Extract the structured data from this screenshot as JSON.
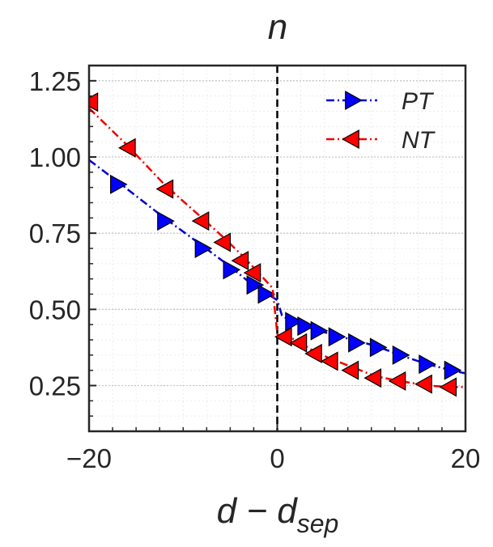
{
  "chart_data": {
    "type": "line",
    "title": "n",
    "xlabel_main": "d − d",
    "xlabel_sub": "sep",
    "ylabel": "",
    "xlim": [
      -20,
      20
    ],
    "ylim": [
      0.1,
      1.3
    ],
    "x_ticks": [
      -20,
      0,
      20
    ],
    "x_tick_labels": [
      "−20",
      "0",
      "20"
    ],
    "y_ticks": [
      0.25,
      0.5,
      0.75,
      1.0,
      1.25
    ],
    "y_tick_labels": [
      "0.25",
      "0.50",
      "0.75",
      "1.00",
      "1.25"
    ],
    "grid": true,
    "legend_position": "top-right",
    "reference_line_x": 0,
    "series": [
      {
        "name": "PT",
        "color": "#0000ff",
        "line_color": "#0000cc",
        "marker": "triangle-right",
        "line": [
          [
            -20,
            0.99
          ],
          [
            -17,
            0.92
          ],
          [
            -12,
            0.8
          ],
          [
            -8,
            0.71
          ],
          [
            -5,
            0.64
          ],
          [
            -3,
            0.59
          ],
          [
            -1.5,
            0.56
          ],
          [
            0,
            0.53
          ],
          [
            0.5,
            0.48
          ],
          [
            1.5,
            0.46
          ],
          [
            3,
            0.445
          ],
          [
            5,
            0.425
          ],
          [
            8,
            0.4
          ],
          [
            10.5,
            0.38
          ],
          [
            13,
            0.35
          ],
          [
            16,
            0.32
          ],
          [
            18.5,
            0.3
          ],
          [
            20,
            0.29
          ]
        ],
        "markers": [
          [
            -17,
            0.91
          ],
          [
            -12,
            0.79
          ],
          [
            -8,
            0.7
          ],
          [
            -5,
            0.63
          ],
          [
            -2.5,
            0.58
          ],
          [
            -1.3,
            0.55
          ],
          [
            1.6,
            0.46
          ],
          [
            2.9,
            0.445
          ],
          [
            4.3,
            0.43
          ],
          [
            6.2,
            0.41
          ],
          [
            8.3,
            0.39
          ],
          [
            10.6,
            0.375
          ],
          [
            13,
            0.35
          ],
          [
            15.8,
            0.32
          ],
          [
            18.5,
            0.3
          ]
        ]
      },
      {
        "name": "NT",
        "color": "#ff0000",
        "line_color": "#ee0000",
        "marker": "triangle-left",
        "line": [
          [
            -20,
            1.16
          ],
          [
            -16,
            1.04
          ],
          [
            -12,
            0.91
          ],
          [
            -8,
            0.8
          ],
          [
            -5.5,
            0.73
          ],
          [
            -3.5,
            0.67
          ],
          [
            -2,
            0.62
          ],
          [
            -0.5,
            0.57
          ],
          [
            0,
            0.42
          ],
          [
            2,
            0.4
          ],
          [
            3.5,
            0.37
          ],
          [
            5.5,
            0.34
          ],
          [
            8,
            0.31
          ],
          [
            10.5,
            0.28
          ],
          [
            13,
            0.265
          ],
          [
            16,
            0.25
          ],
          [
            18.5,
            0.245
          ],
          [
            20,
            0.245
          ]
        ],
        "markers": [
          [
            -19.8,
            1.18
          ],
          [
            -15.8,
            1.03
          ],
          [
            -11.8,
            0.895
          ],
          [
            -8,
            0.79
          ],
          [
            -5.7,
            0.72
          ],
          [
            -3.8,
            0.66
          ],
          [
            -2.5,
            0.62
          ],
          [
            0.8,
            0.41
          ],
          [
            2.4,
            0.39
          ],
          [
            4,
            0.355
          ],
          [
            5.7,
            0.33
          ],
          [
            7.9,
            0.3
          ],
          [
            10.3,
            0.275
          ],
          [
            12.9,
            0.265
          ],
          [
            15.7,
            0.255
          ],
          [
            18.3,
            0.245
          ]
        ]
      }
    ]
  }
}
